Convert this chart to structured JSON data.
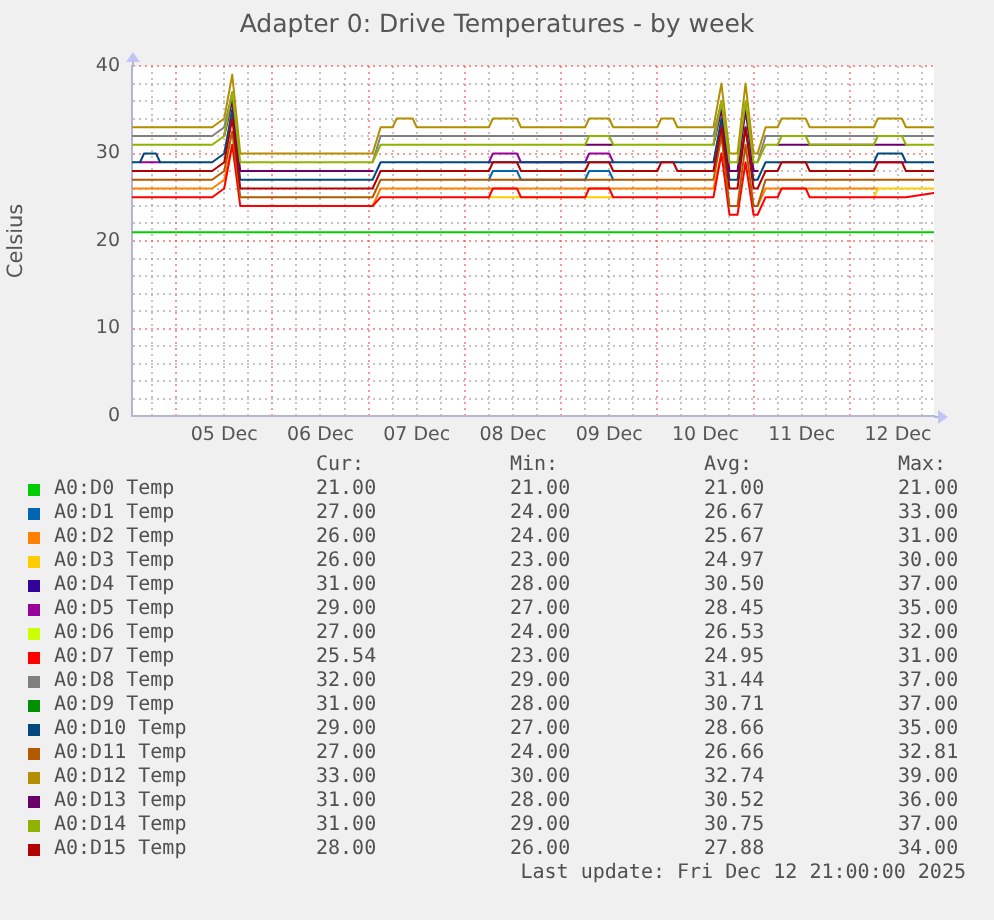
{
  "chart_data": {
    "type": "line",
    "title": "Adapter 0: Drive Temperatures - by week",
    "ylabel": "Celsius",
    "x": [
      "2025-12-04T13:00",
      "2025-12-04T15:00",
      "2025-12-04T16:00",
      "2025-12-04T19:00",
      "2025-12-04T20:00",
      "2025-12-05T06:00",
      "2025-12-05T09:00",
      "2025-12-05T12:00",
      "2025-12-05T14:00",
      "2025-12-05T16:00",
      "2025-12-05T17:00",
      "2025-12-06T12:00",
      "2025-12-07T01:00",
      "2025-12-07T03:00",
      "2025-12-07T06:00",
      "2025-12-07T07:00",
      "2025-12-07T11:00",
      "2025-12-07T12:00",
      "2025-12-08T06:00",
      "2025-12-08T07:00",
      "2025-12-08T13:00",
      "2025-12-08T14:00",
      "2025-12-09T06:00",
      "2025-12-09T07:00",
      "2025-12-09T12:00",
      "2025-12-09T13:00",
      "2025-12-10T00:00",
      "2025-12-10T01:00",
      "2025-12-10T04:00",
      "2025-12-10T05:00",
      "2025-12-10T14:00",
      "2025-12-10T16:00",
      "2025-12-10T18:00",
      "2025-12-10T20:00",
      "2025-12-10T22:00",
      "2025-12-11T00:00",
      "2025-12-11T01:00",
      "2025-12-11T03:00",
      "2025-12-11T06:00",
      "2025-12-11T07:00",
      "2025-12-11T13:00",
      "2025-12-11T14:00",
      "2025-12-12T06:00",
      "2025-12-12T07:00",
      "2025-12-12T13:00",
      "2025-12-12T14:00",
      "2025-12-12T21:00"
    ],
    "series": [
      {
        "name": "A0:D0 Temp",
        "color": "#00cc00",
        "values": [
          21,
          21,
          21,
          21,
          21,
          21,
          21,
          21,
          21,
          21,
          21,
          21,
          21,
          21,
          21,
          21,
          21,
          21,
          21,
          21,
          21,
          21,
          21,
          21,
          21,
          21,
          21,
          21,
          21,
          21,
          21,
          21,
          21,
          21,
          21,
          21,
          21,
          21,
          21,
          21,
          21,
          21,
          21,
          21,
          21,
          21,
          21
        ]
      },
      {
        "name": "A0:D1 Temp",
        "color": "#0066b3",
        "values": [
          null,
          null,
          null,
          null,
          null,
          null,
          null,
          null,
          null,
          null,
          null,
          null,
          null,
          null,
          null,
          null,
          null,
          null,
          27,
          28,
          28,
          27,
          27,
          28,
          28,
          27,
          null,
          null,
          null,
          null,
          null,
          null,
          null,
          null,
          null,
          null,
          null,
          null,
          null,
          null,
          null,
          null,
          null,
          null,
          null,
          null,
          null
        ]
      },
      {
        "name": "A0:D2 Temp",
        "color": "#ff8000",
        "values": [
          26,
          26,
          26,
          26,
          26,
          26,
          26,
          27,
          31,
          null,
          null,
          null,
          24,
          26,
          26,
          26,
          26,
          26,
          26,
          26,
          26,
          26,
          26,
          26,
          26,
          26,
          26,
          26,
          26,
          26,
          26,
          30,
          null,
          null,
          null,
          null,
          24,
          26,
          26,
          26,
          26,
          26,
          26,
          26,
          null,
          null,
          null
        ]
      },
      {
        "name": "A0:D3 Temp",
        "color": "#ffcc00",
        "values": [
          null,
          null,
          null,
          null,
          null,
          null,
          null,
          null,
          null,
          null,
          null,
          null,
          null,
          null,
          null,
          null,
          null,
          null,
          25,
          25,
          25,
          25,
          25,
          25,
          25,
          25,
          null,
          null,
          null,
          null,
          null,
          null,
          null,
          null,
          null,
          null,
          null,
          null,
          null,
          null,
          null,
          null,
          25,
          26,
          26,
          26,
          26
        ]
      },
      {
        "name": "A0:D4 Temp",
        "color": "#330099",
        "values": [
          null,
          null,
          null,
          null,
          null,
          null,
          null,
          null,
          null,
          null,
          null,
          null,
          null,
          null,
          null,
          null,
          null,
          null,
          null,
          null,
          null,
          null,
          null,
          null,
          null,
          null,
          null,
          null,
          null,
          null,
          null,
          null,
          null,
          null,
          null,
          null,
          null,
          null,
          null,
          null,
          null,
          null,
          null,
          null,
          null,
          null,
          null
        ]
      },
      {
        "name": "A0:D5 Temp",
        "color": "#990099",
        "values": [
          null,
          29,
          29,
          29,
          29,
          null,
          null,
          null,
          null,
          null,
          null,
          null,
          null,
          null,
          null,
          null,
          null,
          null,
          29,
          30,
          30,
          29,
          29,
          30,
          30,
          29,
          null,
          null,
          null,
          null,
          null,
          null,
          null,
          null,
          null,
          null,
          null,
          null,
          null,
          null,
          null,
          null,
          29,
          29,
          29,
          29,
          null
        ]
      },
      {
        "name": "A0:D6 Temp",
        "color": "#ccff00",
        "values": [
          null,
          null,
          null,
          null,
          null,
          null,
          null,
          null,
          null,
          null,
          null,
          null,
          null,
          null,
          null,
          null,
          null,
          null,
          null,
          null,
          null,
          null,
          null,
          null,
          null,
          null,
          null,
          null,
          null,
          null,
          null,
          null,
          null,
          null,
          null,
          null,
          null,
          null,
          null,
          null,
          null,
          null,
          null,
          null,
          null,
          null,
          null
        ]
      },
      {
        "name": "A0:D7 Temp",
        "color": "#ff0000",
        "values": [
          25,
          25,
          25,
          25,
          25,
          25,
          25,
          26,
          31,
          24,
          24,
          24,
          24,
          25,
          25,
          25,
          25,
          25,
          25,
          26,
          26,
          25,
          25,
          26,
          26,
          25,
          25,
          25,
          25,
          25,
          25,
          30,
          23,
          23,
          29,
          23,
          23,
          25,
          25,
          26,
          26,
          25,
          25,
          25,
          25,
          25,
          25.5
        ]
      },
      {
        "name": "A0:D8 Temp",
        "color": "#808080",
        "values": [
          32,
          32,
          32,
          32,
          32,
          32,
          32,
          33,
          37,
          null,
          null,
          null,
          29,
          32,
          32,
          32,
          32,
          32,
          32,
          32,
          32,
          32,
          32,
          32,
          32,
          32,
          32,
          32,
          32,
          32,
          32,
          36,
          null,
          null,
          null,
          null,
          29,
          32,
          32,
          32,
          32,
          32,
          32,
          32,
          32,
          32,
          32
        ]
      },
      {
        "name": "A0:D9 Temp",
        "color": "#008f00",
        "values": [
          null,
          null,
          null,
          null,
          null,
          null,
          null,
          null,
          null,
          null,
          null,
          null,
          null,
          null,
          null,
          null,
          null,
          null,
          null,
          null,
          null,
          null,
          null,
          null,
          null,
          null,
          null,
          null,
          null,
          null,
          null,
          null,
          null,
          null,
          null,
          null,
          null,
          null,
          null,
          null,
          null,
          null,
          null,
          null,
          null,
          null,
          null
        ]
      },
      {
        "name": "A0:D10 Temp",
        "color": "#00487d",
        "values": [
          29,
          29,
          30,
          30,
          29,
          29,
          29,
          30,
          35,
          27,
          27,
          27,
          27,
          29,
          29,
          29,
          29,
          29,
          29,
          29,
          29,
          29,
          29,
          29,
          29,
          29,
          29,
          29,
          29,
          29,
          29,
          34,
          27,
          27,
          33,
          27,
          27,
          29,
          29,
          29,
          29,
          29,
          29,
          30,
          30,
          29,
          29
        ]
      },
      {
        "name": "A0:D11 Temp",
        "color": "#b35a00",
        "values": [
          27,
          27,
          27,
          27,
          27,
          27,
          27,
          28,
          32.5,
          25,
          25,
          25,
          25,
          27,
          27,
          27,
          27,
          27,
          27,
          27,
          27,
          27,
          27,
          27,
          27,
          27,
          27,
          27,
          27,
          27,
          27,
          32,
          24,
          24,
          31,
          24,
          24,
          27,
          27,
          27,
          27,
          27,
          27,
          27,
          27,
          27,
          27
        ]
      },
      {
        "name": "A0:D12 Temp",
        "color": "#b38f00",
        "values": [
          33,
          33,
          33,
          33,
          33,
          33,
          33,
          34,
          39,
          30,
          30,
          30,
          30,
          33,
          33,
          34,
          34,
          33,
          33,
          34,
          34,
          33,
          33,
          34,
          34,
          33,
          33,
          34,
          34,
          33,
          33,
          38,
          30,
          30,
          38,
          30,
          30,
          33,
          33,
          34,
          34,
          33,
          33,
          34,
          34,
          33,
          33
        ]
      },
      {
        "name": "A0:D13 Temp",
        "color": "#6b006b",
        "values": [
          null,
          null,
          null,
          null,
          null,
          null,
          null,
          32,
          36,
          28,
          28,
          28,
          28,
          null,
          null,
          null,
          null,
          null,
          null,
          null,
          null,
          null,
          31,
          31,
          31,
          31,
          null,
          null,
          null,
          null,
          31,
          35,
          28,
          28,
          35,
          28,
          28,
          null,
          31,
          31,
          31,
          31,
          31,
          31,
          31,
          31,
          null
        ]
      },
      {
        "name": "A0:D14 Temp",
        "color": "#8fb300",
        "values": [
          31,
          31,
          31,
          31,
          31,
          31,
          31,
          32,
          37,
          29,
          29,
          29,
          29,
          31,
          31,
          31,
          31,
          31,
          31,
          31,
          31,
          31,
          31,
          32,
          32,
          31,
          31,
          31,
          31,
          31,
          31,
          36,
          29,
          29,
          36,
          29,
          29,
          31,
          31,
          32,
          32,
          31,
          31,
          32,
          32,
          31,
          31
        ]
      },
      {
        "name": "A0:D15 Temp",
        "color": "#b30000",
        "values": [
          28,
          28,
          28,
          28,
          28,
          28,
          28,
          29,
          34,
          26,
          26,
          26,
          26,
          28,
          28,
          28,
          28,
          28,
          28,
          29,
          29,
          28,
          28,
          29,
          29,
          28,
          28,
          29,
          29,
          28,
          28,
          33,
          26,
          26,
          33,
          26,
          26,
          28,
          28,
          29,
          29,
          28,
          28,
          29,
          29,
          28,
          28
        ]
      }
    ],
    "xlim": [
      "2025-12-04T13:00",
      "2025-12-12T21:00"
    ],
    "xticks": [
      {
        "value": "2025-12-04T18:00",
        "label": null
      },
      {
        "value": "2025-12-05T00:00",
        "label": null
      },
      {
        "value": "2025-12-05T06:00",
        "label": null
      },
      {
        "value": "2025-12-05T12:00",
        "label": "05 Dec"
      },
      {
        "value": "2025-12-05T18:00",
        "label": null
      },
      {
        "value": "2025-12-06T00:00",
        "label": null
      },
      {
        "value": "2025-12-06T06:00",
        "label": null
      },
      {
        "value": "2025-12-06T12:00",
        "label": "06 Dec"
      },
      {
        "value": "2025-12-06T18:00",
        "label": null
      },
      {
        "value": "2025-12-07T00:00",
        "label": null
      },
      {
        "value": "2025-12-07T06:00",
        "label": null
      },
      {
        "value": "2025-12-07T12:00",
        "label": "07 Dec"
      },
      {
        "value": "2025-12-07T18:00",
        "label": null
      },
      {
        "value": "2025-12-08T00:00",
        "label": null
      },
      {
        "value": "2025-12-08T06:00",
        "label": null
      },
      {
        "value": "2025-12-08T12:00",
        "label": "08 Dec"
      },
      {
        "value": "2025-12-08T18:00",
        "label": null
      },
      {
        "value": "2025-12-09T00:00",
        "label": null
      },
      {
        "value": "2025-12-09T06:00",
        "label": null
      },
      {
        "value": "2025-12-09T12:00",
        "label": "09 Dec"
      },
      {
        "value": "2025-12-09T18:00",
        "label": null
      },
      {
        "value": "2025-12-10T00:00",
        "label": null
      },
      {
        "value": "2025-12-10T06:00",
        "label": null
      },
      {
        "value": "2025-12-10T12:00",
        "label": "10 Dec"
      },
      {
        "value": "2025-12-10T18:00",
        "label": null
      },
      {
        "value": "2025-12-11T00:00",
        "label": null
      },
      {
        "value": "2025-12-11T06:00",
        "label": null
      },
      {
        "value": "2025-12-11T12:00",
        "label": "11 Dec"
      },
      {
        "value": "2025-12-11T18:00",
        "label": null
      },
      {
        "value": "2025-12-12T00:00",
        "label": null
      },
      {
        "value": "2025-12-12T06:00",
        "label": null
      },
      {
        "value": "2025-12-12T12:00",
        "label": "12 Dec"
      },
      {
        "value": "2025-12-12T18:00",
        "label": null
      }
    ],
    "ylim": [
      0,
      40
    ],
    "yticks": [
      0,
      {
        "value": 2,
        "label": null
      },
      {
        "value": 4,
        "label": null
      },
      {
        "value": 6,
        "label": null
      },
      {
        "value": 8,
        "label": null
      },
      10,
      {
        "value": 12,
        "label": null
      },
      {
        "value": 14,
        "label": null
      },
      {
        "value": 16,
        "label": null
      },
      {
        "value": 18,
        "label": null
      },
      20,
      {
        "value": 22,
        "label": null
      },
      {
        "value": 24,
        "label": null
      },
      {
        "value": 26,
        "label": null
      },
      {
        "value": 28,
        "label": null
      },
      30,
      {
        "value": 32,
        "label": null
      },
      {
        "value": 34,
        "label": null
      },
      {
        "value": 36,
        "label": null
      },
      {
        "value": 38,
        "label": null
      },
      40
    ],
    "grid": true,
    "legend": "bottom",
    "annotations": [
      "Cur:",
      "Min:",
      "Avg:",
      "Max:",
      "21.00",
      "21.00",
      "21.00",
      "21.00",
      "27.00",
      "24.00",
      "26.67",
      "33.00",
      "26.00",
      "24.00",
      "25.67",
      "31.00",
      "26.00",
      "23.00",
      "24.97",
      "30.00",
      "31.00",
      "28.00",
      "30.50",
      "37.00",
      "29.00",
      "27.00",
      "28.45",
      "35.00",
      "27.00",
      "24.00",
      "26.53",
      "32.00",
      "25.54",
      "23.00",
      "24.95",
      "31.00",
      "32.00",
      "29.00",
      "31.44",
      "37.00",
      "31.00",
      "28.00",
      "30.71",
      "37.00",
      "29.00",
      "27.00",
      "28.66",
      "35.00",
      "27.00",
      "24.00",
      "26.66",
      "32.81",
      "33.00",
      "30.00",
      "32.74",
      "39.00",
      "31.00",
      "28.00",
      "30.52",
      "36.00",
      "31.00",
      "29.00",
      "30.75",
      "37.00",
      "28.00",
      "26.00",
      "27.88",
      "34.00",
      "Last update: Fri Dec 12 21:00:00 2025"
    ]
  }
}
